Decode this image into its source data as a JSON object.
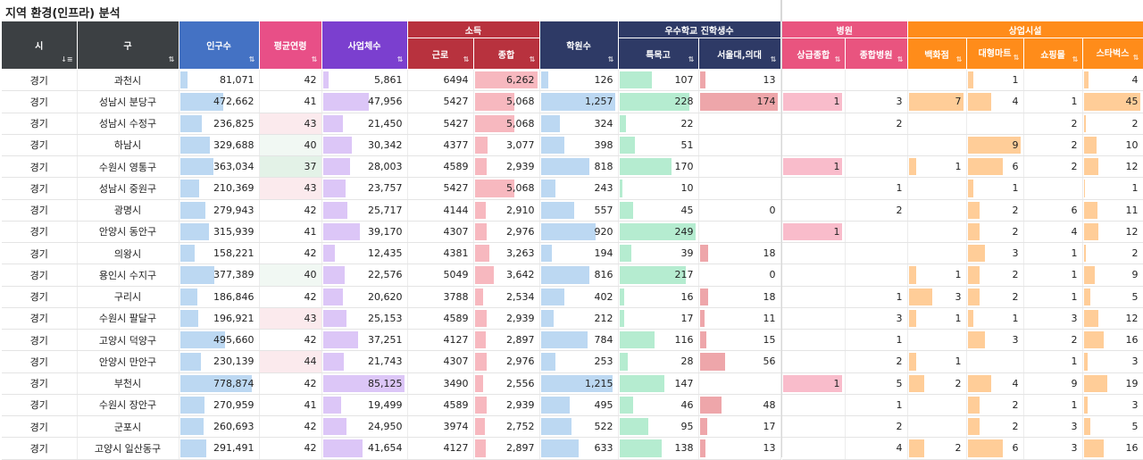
{
  "title": "지역 환경(인프라) 분석",
  "colors": {
    "pop": "#bcd8f2",
    "school": "#bcd8f2",
    "biz": "#dcc6f7",
    "income": "#f7b8bf",
    "top": "#b5ecd0",
    "seoul": "#eea6aa",
    "hosp": "#f9bccb",
    "retail": "#ffcd98",
    "ageHigh": "#fbeaed",
    "ageLow": "#e3f2e7"
  },
  "headers": {
    "si": "시",
    "gu": "구",
    "pop": "인구수",
    "age": "평균연령",
    "biz": "사업체수",
    "income_group": "소득",
    "income_work": "근로",
    "income_total": "종합",
    "school": "학원수",
    "adm_group": "우수학교 진학생수",
    "adm_top": "특목고",
    "adm_seoul": "서울대,의대",
    "hosp_group": "병원",
    "hosp_general": "상급종합",
    "hosp_comp": "종합병원",
    "retail_group": "상업시설",
    "retail_dept": "백화점",
    "retail_mart": "대형마트",
    "retail_mall": "쇼핑몰",
    "retail_sb": "스타벅스"
  },
  "sort_icons": {
    "asc": "⇅",
    "active": "↓≡"
  },
  "rows": [
    {
      "si": "경기",
      "gu": "과천시",
      "pop": "81,071",
      "age": "42",
      "biz": "5,861",
      "work": "6494",
      "total": "6,262",
      "school": "126",
      "top": "107",
      "seoul": "13",
      "hg": "",
      "hc": "",
      "dept": "",
      "mart": "1",
      "mall": "",
      "sb": "4"
    },
    {
      "si": "경기",
      "gu": "성남시 분당구",
      "pop": "472,662",
      "age": "41",
      "biz": "47,956",
      "work": "5427",
      "total": "5,068",
      "school": "1,257",
      "top": "228",
      "seoul": "174",
      "hg": "1",
      "hc": "3",
      "dept": "7",
      "mart": "4",
      "mall": "1",
      "sb": "45"
    },
    {
      "si": "경기",
      "gu": "성남시 수정구",
      "pop": "236,825",
      "age": "43",
      "biz": "21,450",
      "work": "5427",
      "total": "5,068",
      "school": "324",
      "top": "22",
      "seoul": "",
      "hg": "",
      "hc": "2",
      "dept": "",
      "mart": "",
      "mall": "2",
      "sb": "2"
    },
    {
      "si": "경기",
      "gu": "하남시",
      "pop": "329,688",
      "age": "40",
      "biz": "30,342",
      "work": "4377",
      "total": "3,077",
      "school": "398",
      "top": "51",
      "seoul": "",
      "hg": "",
      "hc": "",
      "dept": "",
      "mart": "9",
      "mall": "2",
      "sb": "10"
    },
    {
      "si": "경기",
      "gu": "수원시 영통구",
      "pop": "363,034",
      "age": "37",
      "biz": "28,003",
      "work": "4589",
      "total": "2,939",
      "school": "818",
      "top": "170",
      "seoul": "",
      "hg": "1",
      "hc": "",
      "dept": "1",
      "mart": "6",
      "mall": "2",
      "sb": "12"
    },
    {
      "si": "경기",
      "gu": "성남시 중원구",
      "pop": "210,369",
      "age": "43",
      "biz": "23,757",
      "work": "5427",
      "total": "5,068",
      "school": "243",
      "top": "10",
      "seoul": "",
      "hg": "",
      "hc": "1",
      "dept": "",
      "mart": "1",
      "mall": "",
      "sb": "1"
    },
    {
      "si": "경기",
      "gu": "광명시",
      "pop": "279,943",
      "age": "42",
      "biz": "25,717",
      "work": "4144",
      "total": "2,910",
      "school": "557",
      "top": "45",
      "seoul": "0",
      "hg": "",
      "hc": "2",
      "dept": "",
      "mart": "2",
      "mall": "6",
      "sb": "11"
    },
    {
      "si": "경기",
      "gu": "안양시 동안구",
      "pop": "315,939",
      "age": "41",
      "biz": "39,170",
      "work": "4307",
      "total": "2,976",
      "school": "920",
      "top": "249",
      "seoul": "",
      "hg": "1",
      "hc": "",
      "dept": "",
      "mart": "2",
      "mall": "4",
      "sb": "12"
    },
    {
      "si": "경기",
      "gu": "의왕시",
      "pop": "158,221",
      "age": "42",
      "biz": "12,435",
      "work": "4381",
      "total": "3,263",
      "school": "194",
      "top": "39",
      "seoul": "18",
      "hg": "",
      "hc": "",
      "dept": "",
      "mart": "3",
      "mall": "1",
      "sb": "2"
    },
    {
      "si": "경기",
      "gu": "용인시 수지구",
      "pop": "377,389",
      "age": "40",
      "biz": "22,576",
      "work": "5049",
      "total": "3,642",
      "school": "816",
      "top": "217",
      "seoul": "0",
      "hg": "",
      "hc": "",
      "dept": "1",
      "mart": "2",
      "mall": "1",
      "sb": "9"
    },
    {
      "si": "경기",
      "gu": "구리시",
      "pop": "186,846",
      "age": "42",
      "biz": "20,620",
      "work": "3788",
      "total": "2,534",
      "school": "402",
      "top": "16",
      "seoul": "18",
      "hg": "",
      "hc": "1",
      "dept": "3",
      "mart": "2",
      "mall": "1",
      "sb": "5"
    },
    {
      "si": "경기",
      "gu": "수원시 팔달구",
      "pop": "196,921",
      "age": "43",
      "biz": "25,153",
      "work": "4589",
      "total": "2,939",
      "school": "212",
      "top": "17",
      "seoul": "11",
      "hg": "",
      "hc": "3",
      "dept": "1",
      "mart": "1",
      "mall": "3",
      "sb": "12"
    },
    {
      "si": "경기",
      "gu": "고양시 덕양구",
      "pop": "495,660",
      "age": "42",
      "biz": "37,251",
      "work": "4127",
      "total": "2,897",
      "school": "784",
      "top": "116",
      "seoul": "15",
      "hg": "",
      "hc": "1",
      "dept": "",
      "mart": "3",
      "mall": "2",
      "sb": "16"
    },
    {
      "si": "경기",
      "gu": "안양시 만안구",
      "pop": "230,139",
      "age": "44",
      "biz": "21,743",
      "work": "4307",
      "total": "2,976",
      "school": "253",
      "top": "28",
      "seoul": "56",
      "hg": "",
      "hc": "2",
      "dept": "1",
      "mart": "",
      "mall": "1",
      "sb": "3"
    },
    {
      "si": "경기",
      "gu": "부천시",
      "pop": "778,874",
      "age": "42",
      "biz": "85,125",
      "work": "3490",
      "total": "2,556",
      "school": "1,215",
      "top": "147",
      "seoul": "",
      "hg": "1",
      "hc": "5",
      "dept": "2",
      "mart": "4",
      "mall": "9",
      "sb": "19"
    },
    {
      "si": "경기",
      "gu": "수원시 장안구",
      "pop": "270,959",
      "age": "41",
      "biz": "19,499",
      "work": "4589",
      "total": "2,939",
      "school": "495",
      "top": "46",
      "seoul": "48",
      "hg": "",
      "hc": "1",
      "dept": "",
      "mart": "2",
      "mall": "1",
      "sb": "3"
    },
    {
      "si": "경기",
      "gu": "군포시",
      "pop": "260,693",
      "age": "42",
      "biz": "24,950",
      "work": "3974",
      "total": "2,752",
      "school": "522",
      "top": "95",
      "seoul": "17",
      "hg": "",
      "hc": "2",
      "dept": "",
      "mart": "2",
      "mall": "3",
      "sb": "5"
    },
    {
      "si": "경기",
      "gu": "고양시 일산동구",
      "pop": "291,491",
      "age": "42",
      "biz": "41,654",
      "work": "4127",
      "total": "2,897",
      "school": "633",
      "top": "138",
      "seoul": "13",
      "hg": "",
      "hc": "4",
      "dept": "2",
      "mart": "6",
      "mall": "3",
      "sb": "16"
    }
  ]
}
